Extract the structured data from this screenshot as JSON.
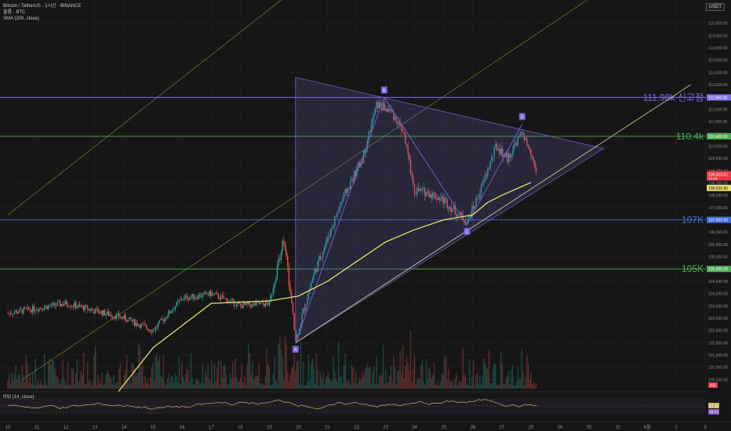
{
  "legend": {
    "symbol": "Bitcoin / TetherUS · 1시간 · BINANCE",
    "volume": "볼륨 · BTC",
    "sma": "SMA (200, close)",
    "rsi": "RSI (14, close)"
  },
  "currency": "USDT",
  "colors": {
    "up": "#26a69a",
    "down": "#ef5350",
    "sma": "#e8e06a",
    "triangle": "#6b5fb8",
    "purple_level": "#7e6ff0",
    "green_level": "#4caf50",
    "blue_level": "#3f6fe0",
    "rsi": "#c9b36a"
  },
  "chart_data": {
    "type": "candlestick",
    "y_axis": {
      "min": 100000,
      "max": 115500,
      "step": 500,
      "ticks": [
        "115,000.00",
        "114,500.00",
        "114,000.00",
        "113,500.00",
        "113,000.00",
        "112,500.00",
        "112,000.00",
        "111,500.00",
        "111,000.00",
        "110,500.00",
        "110,000.00",
        "109,500.00",
        "109,000.00",
        "108,500.00",
        "108,000.00",
        "107,500.00",
        "107,000.00",
        "106,500.00",
        "106,000.00",
        "105,500.00",
        "105,000.00",
        "104,500.00",
        "104,000.00",
        "103,500.00",
        "103,000.00",
        "102,500.00",
        "102,000.00",
        "101,500.00",
        "101,000.00",
        "100,500.00"
      ]
    },
    "x_axis": {
      "labels": [
        "10",
        "11",
        "12",
        "13",
        "14",
        "15",
        "16",
        "17",
        "18",
        "19",
        "20",
        "21",
        "22",
        "23",
        "24",
        "25",
        "26",
        "27",
        "28",
        "29",
        "30",
        "31",
        "6월",
        "2",
        "3"
      ],
      "range": [
        0,
        24.5
      ]
    },
    "levels": [
      {
        "name": "111.98k 신고점",
        "price": 111980,
        "tag": "111,980.00",
        "color": "#7e6ff0"
      },
      {
        "name": "110.4k",
        "price": 110400,
        "tag": "110,400.00",
        "color": "#4caf50"
      },
      {
        "name": "107K",
        "price": 107000,
        "tag": "107,000.00",
        "color": "#3f6fe0"
      },
      {
        "name": "105K",
        "price": 105000,
        "tag": "105,000.00",
        "color": "#4caf50"
      }
    ],
    "price_tags": {
      "last": {
        "price": 108823.62,
        "label": "108,823.62",
        "sub": "18:04",
        "color": "#f23645"
      },
      "sma": {
        "price": 108520.86,
        "label": "108,520.86",
        "color": "#e8e06a"
      },
      "volume": {
        "label": "395",
        "color": "#f23645"
      }
    },
    "pattern_points": [
      {
        "label": "A",
        "t": 9.9,
        "p": 102000
      },
      {
        "label": "B",
        "t": 12.95,
        "p": 111980
      },
      {
        "label": "C",
        "t": 15.8,
        "p": 106800
      },
      {
        "label": "D",
        "t": 17.7,
        "p": 110900
      }
    ],
    "triangle": {
      "apex_top": [
        9.9,
        112800
      ],
      "apex_bottom": [
        9.9,
        102000
      ],
      "tip": [
        20.5,
        109900
      ]
    },
    "support_line": [
      [
        9.9,
        102000
      ],
      [
        23.5,
        112500
      ]
    ],
    "channel_lines": [
      [
        [
          0,
          107200
        ],
        [
          10,
          116500
        ]
      ],
      [
        [
          0.5,
          100500
        ],
        [
          20,
          116000
        ]
      ]
    ],
    "sma_points": [
      [
        3.8,
        100000
      ],
      [
        5,
        101800
      ],
      [
        6,
        102700
      ],
      [
        7,
        103600
      ],
      [
        8,
        103650
      ],
      [
        9,
        103700
      ],
      [
        10,
        103900
      ],
      [
        11,
        104500
      ],
      [
        12,
        105300
      ],
      [
        13,
        106100
      ],
      [
        14,
        106600
      ],
      [
        15,
        107000
      ],
      [
        16,
        107200
      ],
      [
        16.5,
        107700
      ],
      [
        17,
        108000
      ],
      [
        18,
        108520
      ]
    ],
    "price_path": [
      [
        0,
        103200
      ],
      [
        1,
        103400
      ],
      [
        2,
        103600
      ],
      [
        3,
        103300
      ],
      [
        4,
        103000
      ],
      [
        5,
        102500
      ],
      [
        6,
        103800
      ],
      [
        7,
        104000
      ],
      [
        8,
        103500
      ],
      [
        9,
        103600
      ],
      [
        9.5,
        106300
      ],
      [
        9.9,
        102100
      ],
      [
        10.5,
        104700
      ],
      [
        11.5,
        107800
      ],
      [
        12.2,
        109500
      ],
      [
        12.7,
        111700
      ],
      [
        13.2,
        111400
      ],
      [
        13.6,
        110600
      ],
      [
        14,
        108200
      ],
      [
        14.5,
        108100
      ],
      [
        15,
        107800
      ],
      [
        15.8,
        106900
      ],
      [
        16.3,
        108300
      ],
      [
        16.8,
        110000
      ],
      [
        17.2,
        109500
      ],
      [
        17.7,
        110600
      ],
      [
        18.2,
        108900
      ]
    ],
    "rsi": {
      "levels": [
        70,
        50,
        30
      ],
      "tags": [
        "57.47",
        "49.51"
      ]
    }
  }
}
